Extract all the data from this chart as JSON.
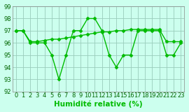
{
  "x": [
    0,
    1,
    2,
    3,
    4,
    5,
    6,
    7,
    8,
    9,
    10,
    11,
    12,
    13,
    14,
    15,
    16,
    17,
    18,
    19,
    20,
    21,
    22,
    23
  ],
  "line1": [
    97.0,
    97.0,
    96.1,
    96.1,
    96.2,
    96.3,
    96.3,
    96.4,
    96.5,
    96.6,
    96.7,
    96.8,
    96.9,
    96.9,
    97.0,
    97.0,
    97.1,
    97.1,
    97.1,
    97.1,
    97.1,
    96.1,
    96.1,
    96.1
  ],
  "line2": [
    97,
    97,
    96,
    96,
    96,
    95,
    93,
    95,
    97,
    97,
    98,
    98,
    97,
    95,
    94,
    95,
    95,
    97,
    97,
    97,
    97,
    95,
    95,
    96
  ],
  "xlabel": "Humidité relative (%)",
  "ylim": [
    92,
    99
  ],
  "yticks": [
    92,
    93,
    94,
    95,
    96,
    97,
    98,
    99
  ],
  "xlim_min": -0.5,
  "xlim_max": 23.5,
  "xticks": [
    0,
    1,
    2,
    3,
    4,
    5,
    6,
    7,
    8,
    9,
    10,
    11,
    12,
    13,
    14,
    15,
    16,
    17,
    18,
    19,
    20,
    21,
    22,
    23
  ],
  "line_color": "#00bb00",
  "bg_color": "#ccffee",
  "grid_color": "#99ccbb",
  "tick_color": "#006600",
  "tick_fontsize": 6,
  "xlabel_fontsize": 7.5,
  "marker": "D",
  "marker_size": 2.5,
  "line_width": 1.0
}
